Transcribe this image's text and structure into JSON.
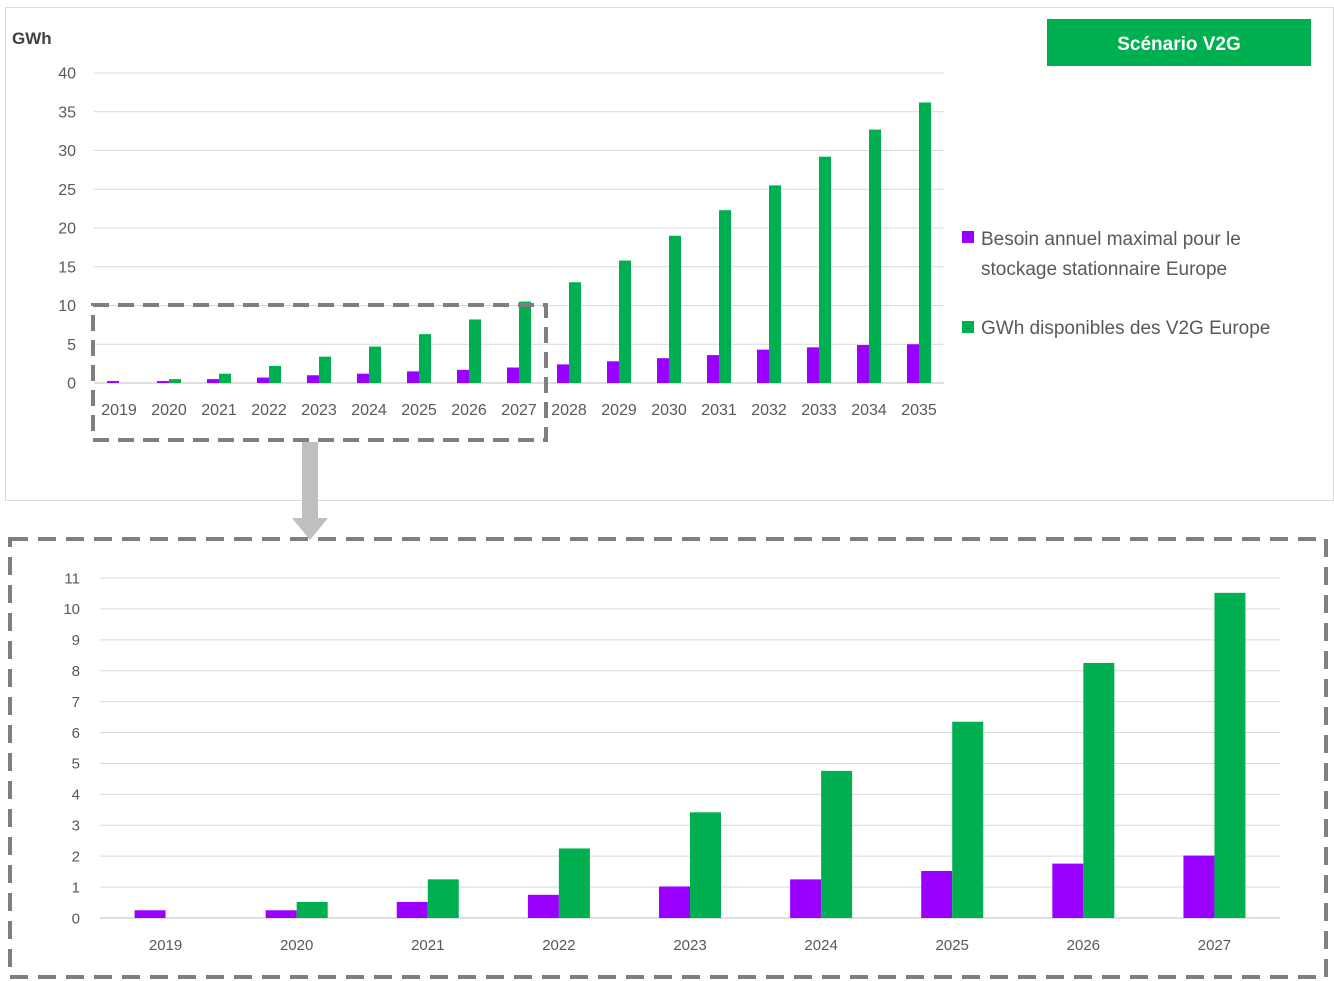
{
  "badge": {
    "label": "Scénario V2G",
    "color": "#00b050"
  },
  "colors": {
    "besoin": "#9900ff",
    "v2g": "#00b050",
    "grid": "#d9d9d9",
    "axis_text": "#595959",
    "frame": "#7f7f7f"
  },
  "legend": {
    "placement": "right"
  },
  "chart_data": [
    {
      "type": "bar",
      "ylabel": "GWh",
      "ylim": [
        0,
        40
      ],
      "yticks": [
        0,
        5,
        10,
        15,
        20,
        25,
        30,
        35,
        40
      ],
      "grid": true,
      "categories": [
        "2019",
        "2020",
        "2021",
        "2022",
        "2023",
        "2024",
        "2025",
        "2026",
        "2027",
        "2028",
        "2029",
        "2030",
        "2031",
        "2032",
        "2033",
        "2034",
        "2035"
      ],
      "series": [
        {
          "name": "Besoin annuel maximal pour le stockage stationnaire Europe",
          "legend_lines": [
            "Besoin annuel maximal pour le",
            "stockage stationnaire Europe"
          ],
          "color": "#9900ff",
          "values": [
            0.25,
            0.25,
            0.5,
            0.7,
            1.0,
            1.2,
            1.5,
            1.7,
            2.0,
            2.4,
            2.8,
            3.2,
            3.6,
            4.3,
            4.6,
            4.9,
            5.0
          ]
        },
        {
          "name": "GWh disponibles des V2G Europe",
          "legend_lines": [
            "GWh disponibles des V2G Europe"
          ],
          "color": "#00b050",
          "values": [
            0,
            0.5,
            1.2,
            2.2,
            3.4,
            4.7,
            6.3,
            8.2,
            10.5,
            13.0,
            15.8,
            19.0,
            22.3,
            25.5,
            29.2,
            32.7,
            36.2
          ]
        }
      ]
    },
    {
      "type": "bar",
      "ylim": [
        0,
        11
      ],
      "yticks": [
        0,
        1,
        2,
        3,
        4,
        5,
        6,
        7,
        8,
        9,
        10,
        11
      ],
      "grid": true,
      "categories": [
        "2019",
        "2020",
        "2021",
        "2022",
        "2023",
        "2024",
        "2025",
        "2026",
        "2027"
      ],
      "series": [
        {
          "name": "Besoin annuel maximal pour le stockage stationnaire Europe",
          "color": "#9900ff",
          "values": [
            0.25,
            0.25,
            0.52,
            0.75,
            1.02,
            1.25,
            1.52,
            1.76,
            2.02
          ]
        },
        {
          "name": "GWh disponibles des V2G Europe",
          "color": "#00b050",
          "values": [
            0,
            0.52,
            1.25,
            2.25,
            3.42,
            4.76,
            6.35,
            8.25,
            10.52
          ]
        }
      ]
    }
  ]
}
